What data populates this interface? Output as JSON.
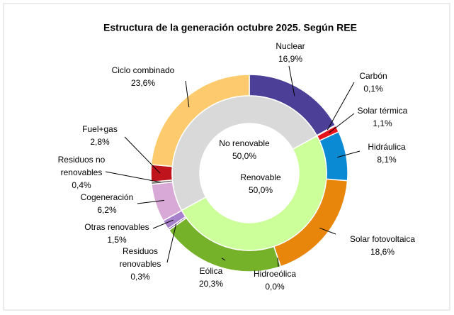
{
  "chart_data": {
    "type": "donut",
    "title": "Estructura de la generación octubre 2025. Según REE",
    "series": [
      {
        "categories": [
          "Nuclear",
          "Carbón",
          "Solar térmica",
          "Hidráulica",
          "Solar fotovoltaica",
          "Hidroeólica",
          "Eólica",
          "Residuos renovables",
          "Otras renovables",
          "Cogeneración",
          "Residuos no renovables",
          "Fuel+gas",
          "Ciclo combinado"
        ],
        "values": [
          16.9,
          0.1,
          1.1,
          8.1,
          18.6,
          0.0,
          20.3,
          0.3,
          1.5,
          6.2,
          0.4,
          2.8,
          23.6
        ],
        "value_labels": [
          "16,9%",
          "0,1%",
          "1,1%",
          "8,1%",
          "18,6%",
          "0,0%",
          "20,3%",
          "0,3%",
          "1,5%",
          "6,2%",
          "0,4%",
          "2,8%",
          "23,6%"
        ],
        "colors": [
          "#4b3f97",
          "#7b3a2a",
          "#e8141b",
          "#0a8ad2",
          "#e8860c",
          "#2f5ea0",
          "#76b12a",
          "#7b4fa0",
          "#a881cc",
          "#d8a9d6",
          "#6d6d6d",
          "#c0141c",
          "#fdcb6e"
        ]
      },
      {
        "categories": [
          "Renovable",
          "No renovable"
        ],
        "values": [
          50.0,
          50.0
        ],
        "value_labels": [
          "50,0%",
          "50,0%"
        ],
        "colors": [
          "#ccff99",
          "#d9d9d9"
        ]
      }
    ]
  }
}
